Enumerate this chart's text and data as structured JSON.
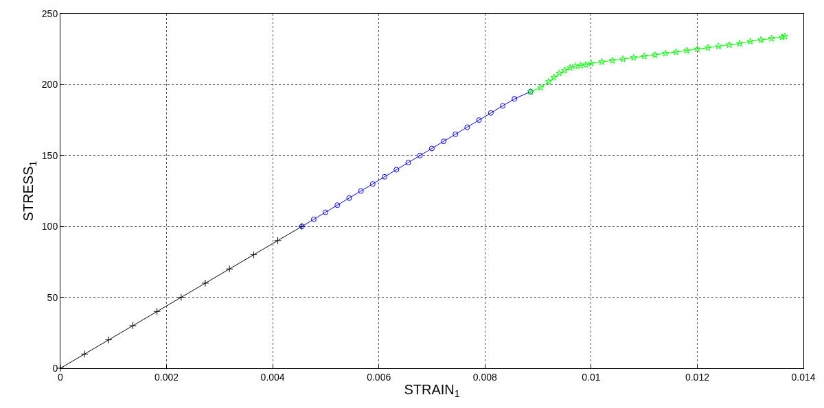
{
  "chart_data": {
    "type": "line",
    "xlabel": "STRAIN$_{1}$",
    "ylabel": "STRESS$_{1}$",
    "xlim": [
      0,
      0.014
    ],
    "xticks": [
      0,
      0.002,
      0.004,
      0.006,
      0.008,
      0.01,
      0.012,
      0.014
    ],
    "ylim": [
      0,
      250
    ],
    "yticks": [
      0,
      50,
      100,
      150,
      200,
      250
    ],
    "grid": true,
    "series": [
      {
        "color": "#000000",
        "marker": "cross",
        "x": [
          0,
          0.000455,
          0.00091,
          0.001365,
          0.00182,
          0.002275,
          0.00273,
          0.003185,
          0.00364,
          0.004095,
          0.00455
        ],
        "values": [
          0,
          10,
          20,
          30,
          40,
          50,
          60,
          70,
          80,
          90,
          100
        ]
      },
      {
        "color": "#0000ff",
        "marker": "circle",
        "x": [
          0.00455,
          0.004773,
          0.004995,
          0.005218,
          0.00544,
          0.005663,
          0.005885,
          0.006108,
          0.00633,
          0.006553,
          0.006775,
          0.006998,
          0.00722,
          0.007443,
          0.007665,
          0.007888,
          0.00811,
          0.008333,
          0.008555,
          0.00886
        ],
        "values": [
          100,
          105,
          110,
          115,
          120,
          125,
          130,
          135,
          140,
          145,
          150,
          155,
          160,
          165,
          170,
          175,
          180,
          185,
          190,
          195
        ]
      },
      {
        "color": "#00ff00",
        "marker": "star",
        "x": [
          0.00886,
          0.00905,
          0.0092,
          0.0093,
          0.0094,
          0.0095,
          0.0096,
          0.0097,
          0.0098,
          0.0099,
          0.01,
          0.0102,
          0.0104,
          0.0106,
          0.0108,
          0.011,
          0.0112,
          0.0114,
          0.0116,
          0.0118,
          0.012,
          0.0122,
          0.0124,
          0.0126,
          0.0128,
          0.013,
          0.0132,
          0.0134,
          0.0136,
          0.01365
        ],
        "values": [
          195,
          198,
          202,
          205,
          208,
          210,
          212,
          213,
          213.5,
          214,
          215,
          216,
          217,
          218,
          219,
          220,
          221,
          222,
          223,
          224,
          225,
          226,
          227,
          228,
          229,
          230.5,
          231.5,
          232.5,
          233.5,
          234
        ]
      }
    ]
  }
}
